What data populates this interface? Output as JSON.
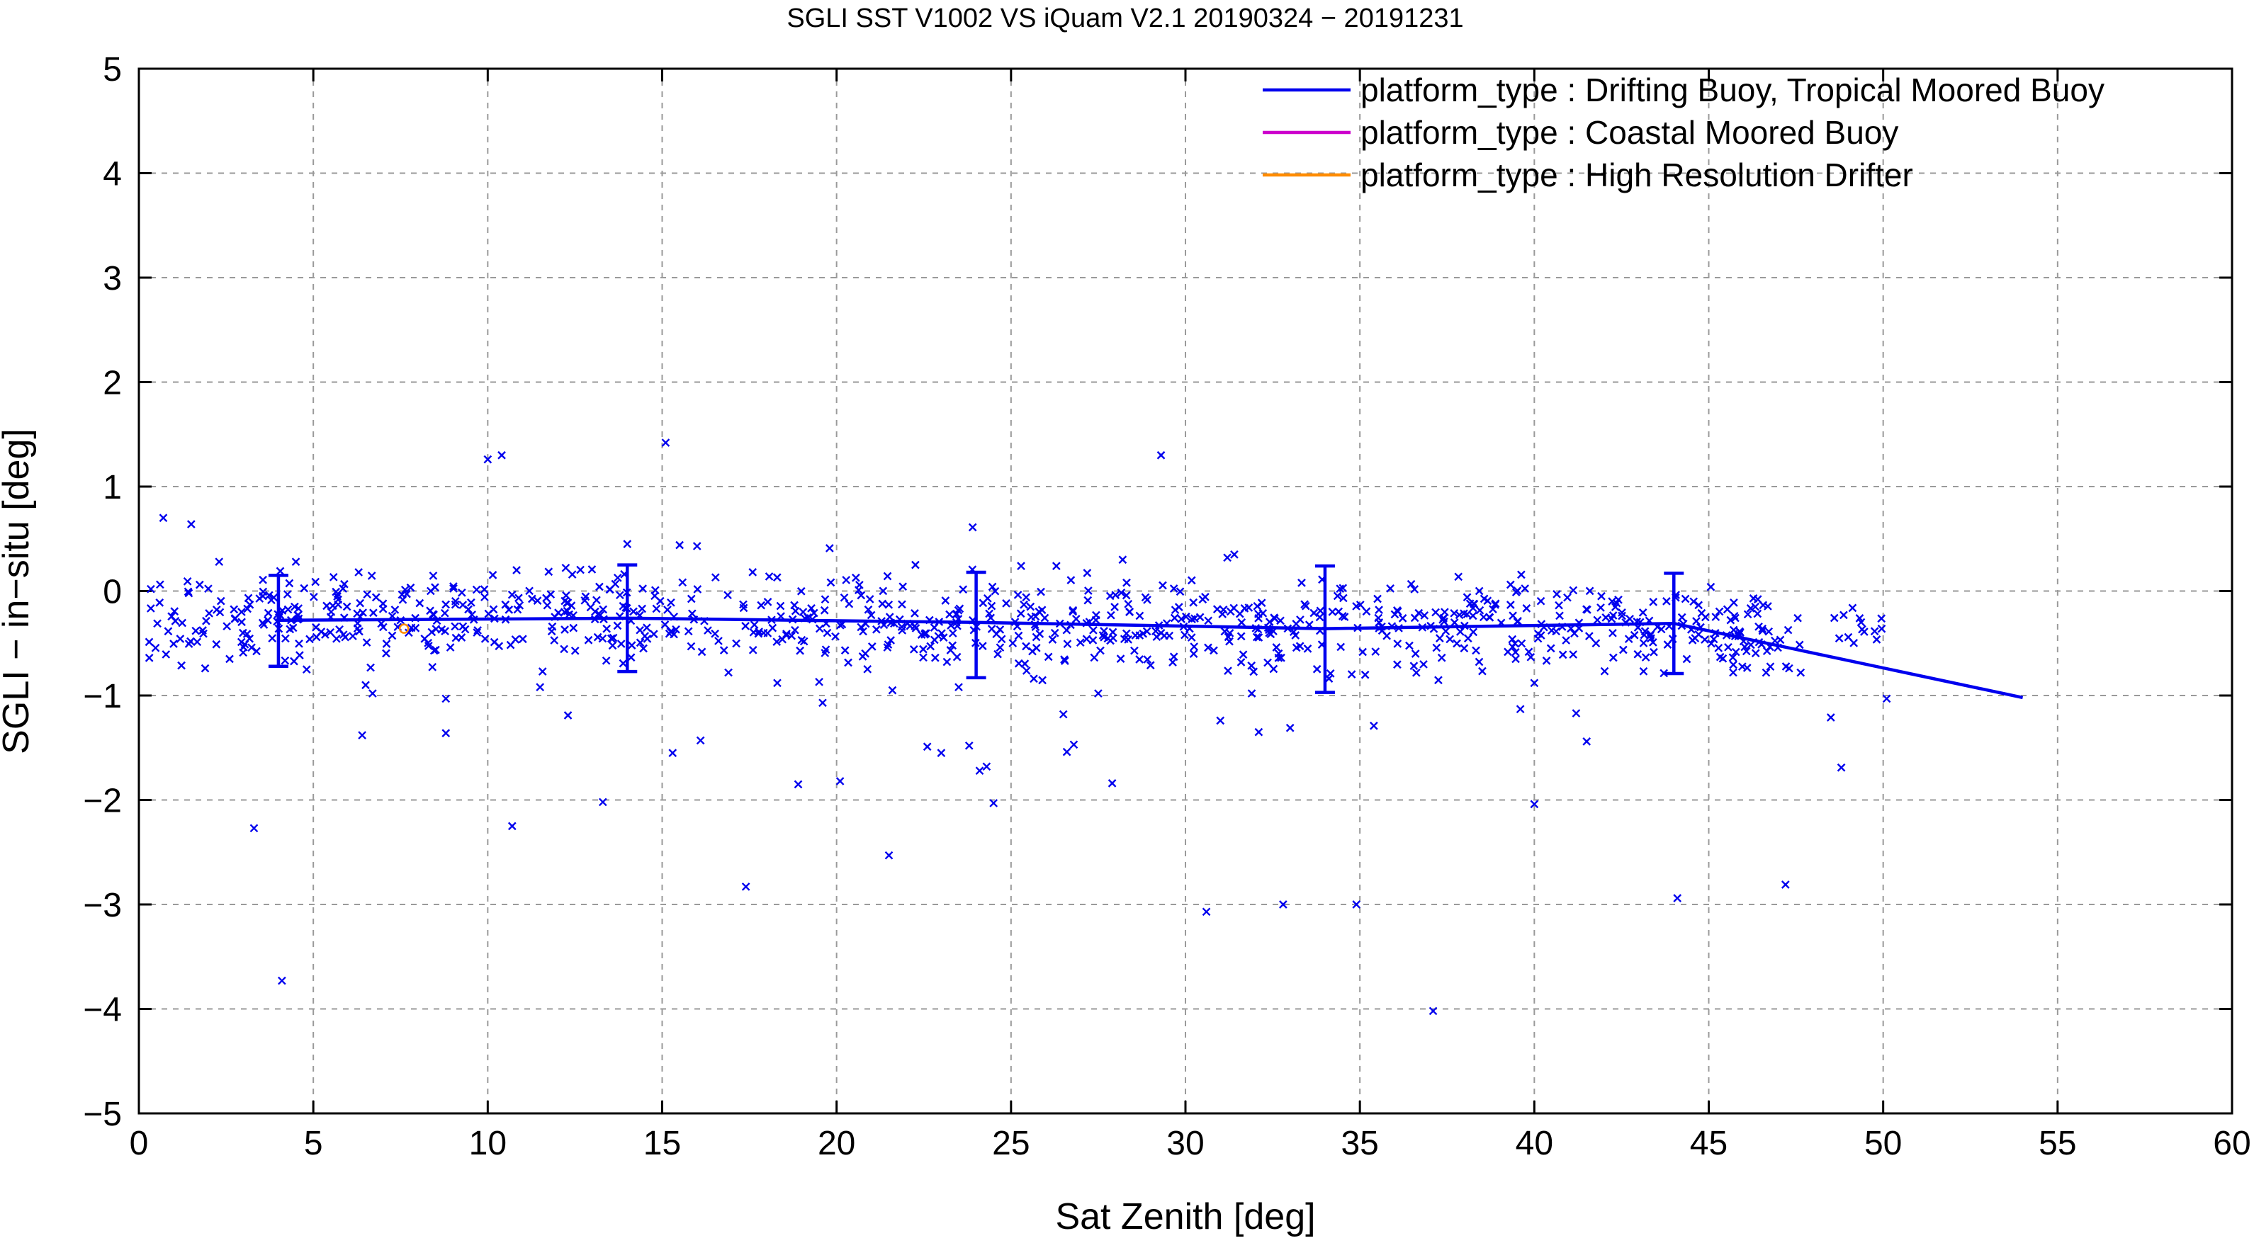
{
  "chart_data": {
    "type": "scatter",
    "title": "SGLI SST V1002 VS iQuam V2.1 20190324 − 20191231",
    "xlabel": "Sat Zenith [deg]",
    "ylabel": "SGLI − in−situ [deg]",
    "xlim": [
      0,
      60
    ],
    "ylim": [
      -5,
      5
    ],
    "xticks": [
      0,
      5,
      10,
      15,
      20,
      25,
      30,
      35,
      40,
      45,
      50,
      55,
      60
    ],
    "yticks": [
      -5,
      -4,
      -3,
      -2,
      -1,
      0,
      1,
      2,
      3,
      4,
      5
    ],
    "grid": true,
    "legend_position": "top-right",
    "legend": [
      {
        "label": "platform_type : Drifting Buoy, Tropical Moored Buoy",
        "color": "#0000ee"
      },
      {
        "label": "platform_type : Coastal Moored Buoy",
        "color": "#cc00cc"
      },
      {
        "label": "platform_type : High Resolution Drifter",
        "color": "#ff8c00"
      }
    ],
    "mean_line": {
      "color": "#0000ee",
      "x": [
        4,
        14,
        24,
        34,
        44,
        54
      ],
      "y": [
        -0.28,
        -0.26,
        -0.3,
        -0.36,
        -0.31,
        -1.02
      ]
    },
    "error_bars": {
      "color": "#0000ee",
      "x": [
        4,
        14,
        24,
        34,
        44
      ],
      "center": [
        -0.28,
        -0.26,
        -0.3,
        -0.36,
        -0.31
      ],
      "low": [
        -0.72,
        -0.77,
        -0.83,
        -0.97,
        -0.79
      ],
      "high": [
        0.15,
        0.25,
        0.18,
        0.24,
        0.17
      ]
    },
    "outliers": [
      {
        "x": 0.7,
        "y": 0.7
      },
      {
        "x": 1.5,
        "y": 0.64
      },
      {
        "x": 2.3,
        "y": 0.28
      },
      {
        "x": 4.5,
        "y": 0.28
      },
      {
        "x": 6.3,
        "y": 0.18
      },
      {
        "x": 10.0,
        "y": 1.26
      },
      {
        "x": 10.4,
        "y": 1.3
      },
      {
        "x": 15.1,
        "y": 1.42
      },
      {
        "x": 15.5,
        "y": 0.44
      },
      {
        "x": 16.0,
        "y": 0.43
      },
      {
        "x": 14.0,
        "y": 0.45
      },
      {
        "x": 19.8,
        "y": 0.41
      },
      {
        "x": 23.9,
        "y": 0.61
      },
      {
        "x": 26.3,
        "y": 0.24
      },
      {
        "x": 28.2,
        "y": 0.3
      },
      {
        "x": 29.3,
        "y": 1.3
      },
      {
        "x": 31.2,
        "y": 0.32
      },
      {
        "x": 31.4,
        "y": 0.35
      },
      {
        "x": 1.9,
        "y": -0.74
      },
      {
        "x": 2.6,
        "y": -0.65
      },
      {
        "x": 3.3,
        "y": -2.27
      },
      {
        "x": 4.1,
        "y": -3.73
      },
      {
        "x": 6.4,
        "y": -1.38
      },
      {
        "x": 6.5,
        "y": -0.9
      },
      {
        "x": 6.7,
        "y": -0.98
      },
      {
        "x": 8.8,
        "y": -1.03
      },
      {
        "x": 8.8,
        "y": -1.36
      },
      {
        "x": 10.7,
        "y": -2.25
      },
      {
        "x": 11.5,
        "y": -0.92
      },
      {
        "x": 12.3,
        "y": -1.19
      },
      {
        "x": 13.3,
        "y": -2.02
      },
      {
        "x": 15.3,
        "y": -1.55
      },
      {
        "x": 16.1,
        "y": -1.43
      },
      {
        "x": 16.9,
        "y": -0.78
      },
      {
        "x": 17.4,
        "y": -2.83
      },
      {
        "x": 18.3,
        "y": -0.88
      },
      {
        "x": 18.9,
        "y": -1.85
      },
      {
        "x": 19.5,
        "y": -0.87
      },
      {
        "x": 19.6,
        "y": -1.07
      },
      {
        "x": 20.1,
        "y": -1.82
      },
      {
        "x": 21.5,
        "y": -2.53
      },
      {
        "x": 21.6,
        "y": -0.95
      },
      {
        "x": 22.6,
        "y": -1.49
      },
      {
        "x": 23.0,
        "y": -1.55
      },
      {
        "x": 23.5,
        "y": -0.92
      },
      {
        "x": 23.8,
        "y": -1.48
      },
      {
        "x": 24.1,
        "y": -1.72
      },
      {
        "x": 24.3,
        "y": -1.68
      },
      {
        "x": 24.5,
        "y": -2.03
      },
      {
        "x": 26.5,
        "y": -1.18
      },
      {
        "x": 26.6,
        "y": -1.54
      },
      {
        "x": 26.8,
        "y": -1.47
      },
      {
        "x": 27.5,
        "y": -0.98
      },
      {
        "x": 27.9,
        "y": -1.84
      },
      {
        "x": 29.0,
        "y": -0.71
      },
      {
        "x": 30.6,
        "y": -3.07
      },
      {
        "x": 31.0,
        "y": -1.24
      },
      {
        "x": 31.9,
        "y": -0.98
      },
      {
        "x": 32.1,
        "y": -1.35
      },
      {
        "x": 32.8,
        "y": -3.0
      },
      {
        "x": 33.0,
        "y": -1.31
      },
      {
        "x": 34.9,
        "y": -3.0
      },
      {
        "x": 35.4,
        "y": -1.29
      },
      {
        "x": 37.1,
        "y": -4.02
      },
      {
        "x": 39.6,
        "y": -1.13
      },
      {
        "x": 40.0,
        "y": -2.04
      },
      {
        "x": 40.0,
        "y": -0.88
      },
      {
        "x": 41.2,
        "y": -1.17
      },
      {
        "x": 41.5,
        "y": -1.44
      },
      {
        "x": 44.1,
        "y": -2.94
      },
      {
        "x": 45.7,
        "y": -0.78
      },
      {
        "x": 47.2,
        "y": -2.81
      },
      {
        "x": 48.5,
        "y": -1.21
      },
      {
        "x": 48.8,
        "y": -1.69
      },
      {
        "x": 50.1,
        "y": -1.03
      }
    ],
    "orange_point": {
      "x": 7.6,
      "y": -0.36
    }
  }
}
